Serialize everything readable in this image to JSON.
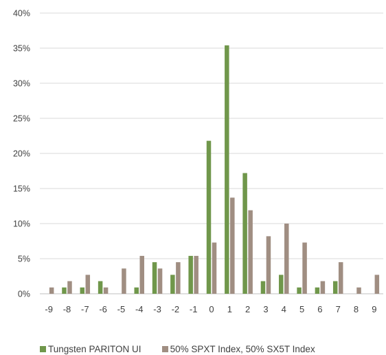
{
  "chart_data": {
    "type": "bar",
    "categories": [
      "-9",
      "-8",
      "-7",
      "-6",
      "-5",
      "-4",
      "-3",
      "-2",
      "-1",
      "0",
      "1",
      "2",
      "3",
      "4",
      "5",
      "6",
      "7",
      "8",
      "9"
    ],
    "series": [
      {
        "name": "Tungsten PARITON UI",
        "color": "#70974b",
        "values": [
          0,
          0.9,
          0.9,
          1.8,
          0,
          0.9,
          4.5,
          2.7,
          5.4,
          21.8,
          35.4,
          17.2,
          1.8,
          2.7,
          0.9,
          0.9,
          1.8,
          0,
          0
        ]
      },
      {
        "name": "50% SPXT Index, 50% SX5T Index",
        "color": "#a08e82",
        "values": [
          0.9,
          1.8,
          2.7,
          0.9,
          3.6,
          5.4,
          3.6,
          4.5,
          5.4,
          7.3,
          13.7,
          11.9,
          8.2,
          10.0,
          7.3,
          1.8,
          4.5,
          0.9,
          2.7
        ]
      }
    ],
    "y_ticks": [
      "0%",
      "5%",
      "10%",
      "15%",
      "20%",
      "25%",
      "30%",
      "35%",
      "40%"
    ],
    "ylim": [
      0,
      40
    ],
    "grid": true,
    "legend_position": "bottom"
  }
}
